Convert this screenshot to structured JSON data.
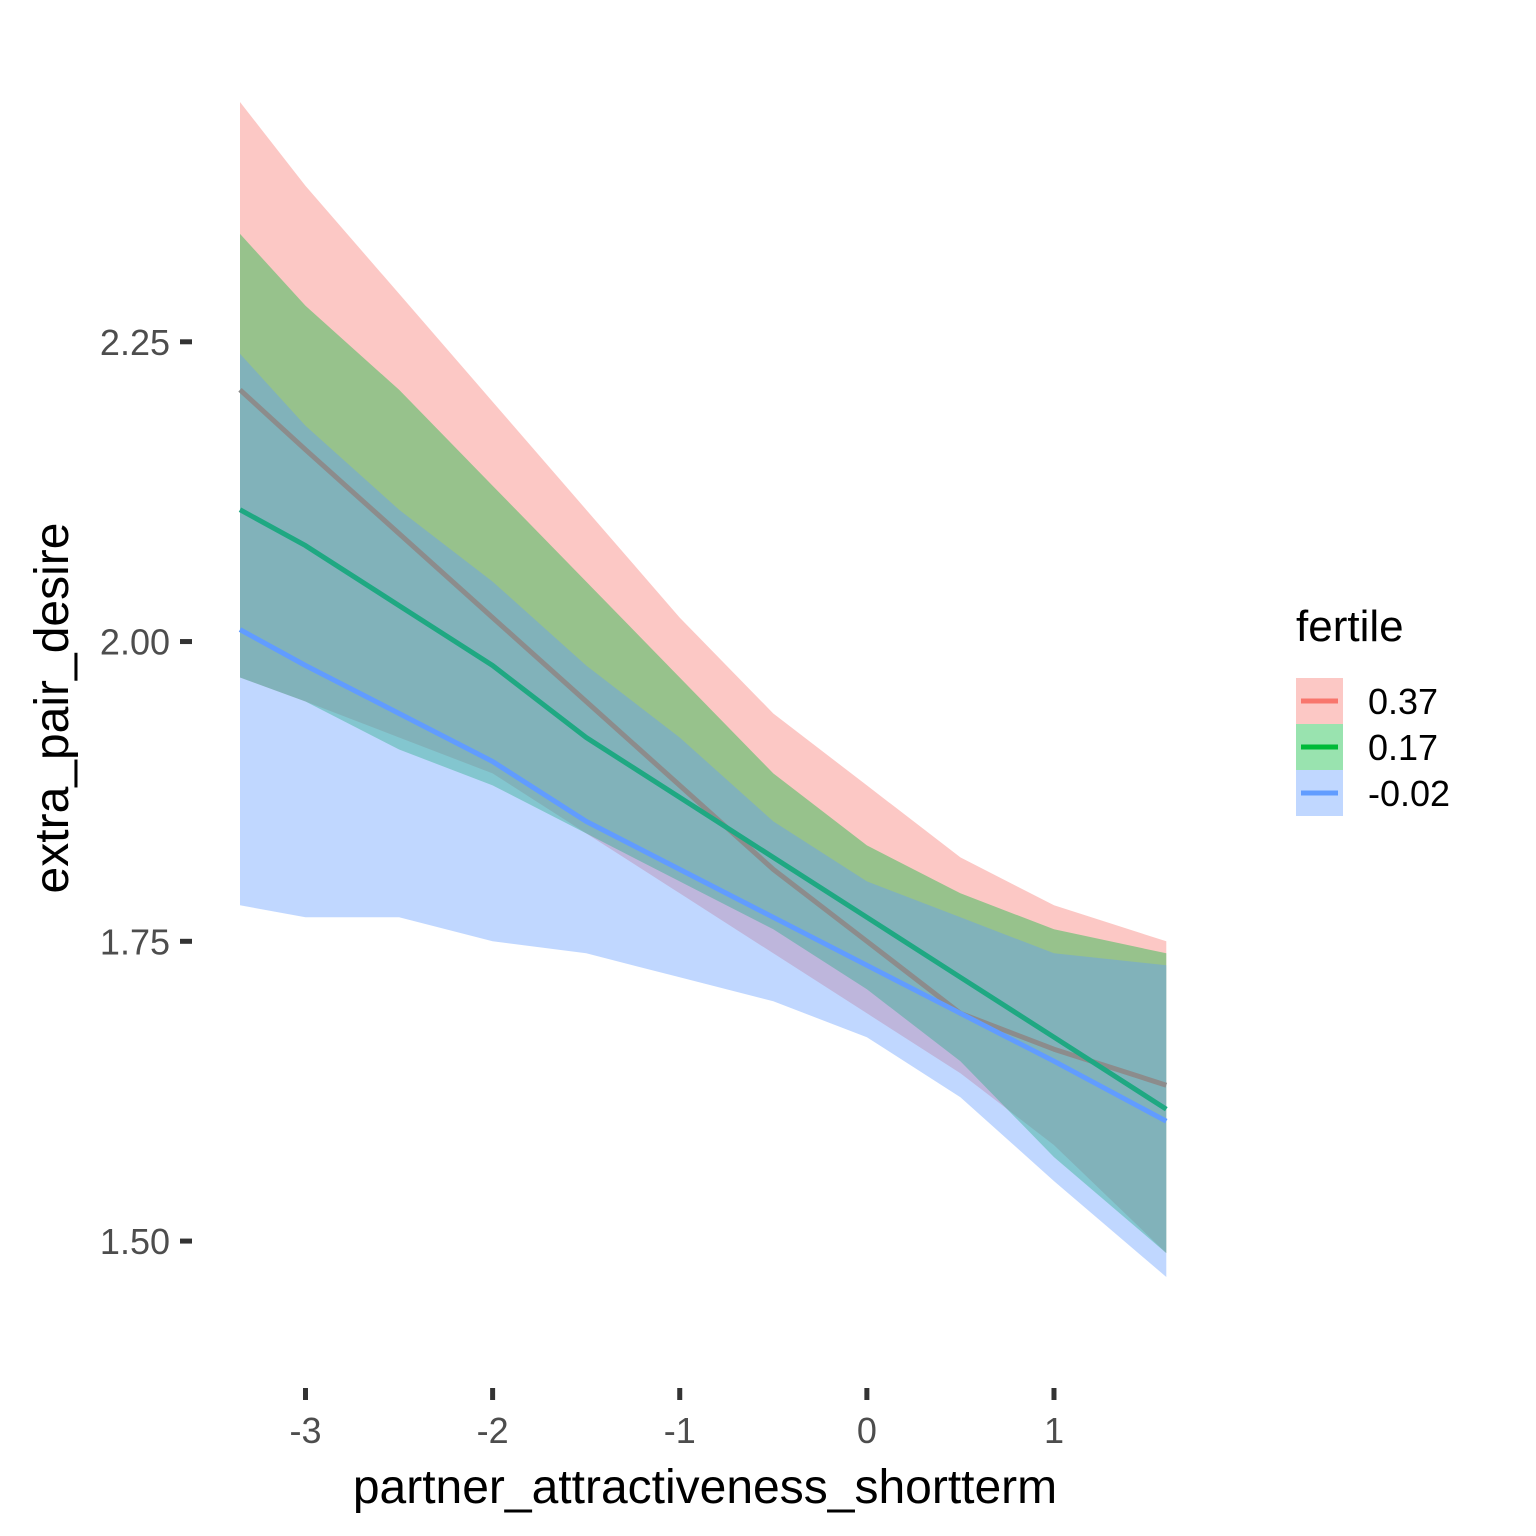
{
  "chart_data": {
    "type": "line",
    "xlabel": "partner_attractiveness_shortterm",
    "ylabel": "extra_pair_desire",
    "xlim": [
      -3.35,
      1.62
    ],
    "ylim": [
      1.43,
      2.46
    ],
    "x_ticks": [
      -3,
      -2,
      -1,
      0,
      1
    ],
    "x_tick_labels": [
      "-3",
      "-2",
      "-1",
      "0",
      "1"
    ],
    "y_ticks": [
      1.5,
      1.75,
      2.0,
      2.25
    ],
    "y_tick_labels": [
      "1.50",
      "1.75",
      "2.00",
      "2.25"
    ],
    "grid": false,
    "legend": {
      "title": "fertile",
      "position": "right"
    },
    "band_opacity": 0.4,
    "series": [
      {
        "name": "0.37",
        "color": "#F8766D",
        "line_color": "#8C8C8C",
        "x": [
          -3.35,
          -3.0,
          -2.5,
          -2.0,
          -1.5,
          -1.0,
          -0.5,
          0.0,
          0.5,
          1.0,
          1.6
        ],
        "y": [
          2.21,
          2.16,
          2.09,
          2.02,
          1.95,
          1.88,
          1.81,
          1.75,
          1.69,
          1.66,
          1.63
        ],
        "lower": [
          1.97,
          1.95,
          1.92,
          1.89,
          1.84,
          1.79,
          1.74,
          1.69,
          1.64,
          1.58,
          1.49
        ],
        "upper": [
          2.45,
          2.38,
          2.29,
          2.2,
          2.11,
          2.02,
          1.94,
          1.88,
          1.82,
          1.78,
          1.75
        ]
      },
      {
        "name": "0.17",
        "color": "#00BA38",
        "line_color": "#1FA882",
        "x": [
          -3.35,
          -3.0,
          -2.5,
          -2.0,
          -1.5,
          -1.0,
          -0.5,
          0.0,
          0.5,
          1.0,
          1.6
        ],
        "y": [
          2.11,
          2.08,
          2.03,
          1.98,
          1.92,
          1.87,
          1.82,
          1.77,
          1.72,
          1.67,
          1.61
        ],
        "lower": [
          1.97,
          1.95,
          1.91,
          1.88,
          1.84,
          1.8,
          1.76,
          1.71,
          1.65,
          1.57,
          1.49
        ],
        "upper": [
          2.34,
          2.28,
          2.21,
          2.13,
          2.05,
          1.97,
          1.89,
          1.83,
          1.79,
          1.76,
          1.74
        ]
      },
      {
        "name": "-0.02",
        "color": "#619CFF",
        "line_color": "#619CFF",
        "x": [
          -3.35,
          -3.0,
          -2.5,
          -2.0,
          -1.5,
          -1.0,
          -0.5,
          0.0,
          0.5,
          1.0,
          1.6
        ],
        "y": [
          2.01,
          1.98,
          1.94,
          1.9,
          1.85,
          1.81,
          1.77,
          1.73,
          1.69,
          1.65,
          1.6
        ],
        "lower": [
          1.78,
          1.77,
          1.77,
          1.75,
          1.74,
          1.72,
          1.7,
          1.67,
          1.62,
          1.55,
          1.47
        ],
        "upper": [
          2.24,
          2.18,
          2.11,
          2.05,
          1.98,
          1.92,
          1.85,
          1.8,
          1.77,
          1.74,
          1.73
        ]
      }
    ]
  }
}
